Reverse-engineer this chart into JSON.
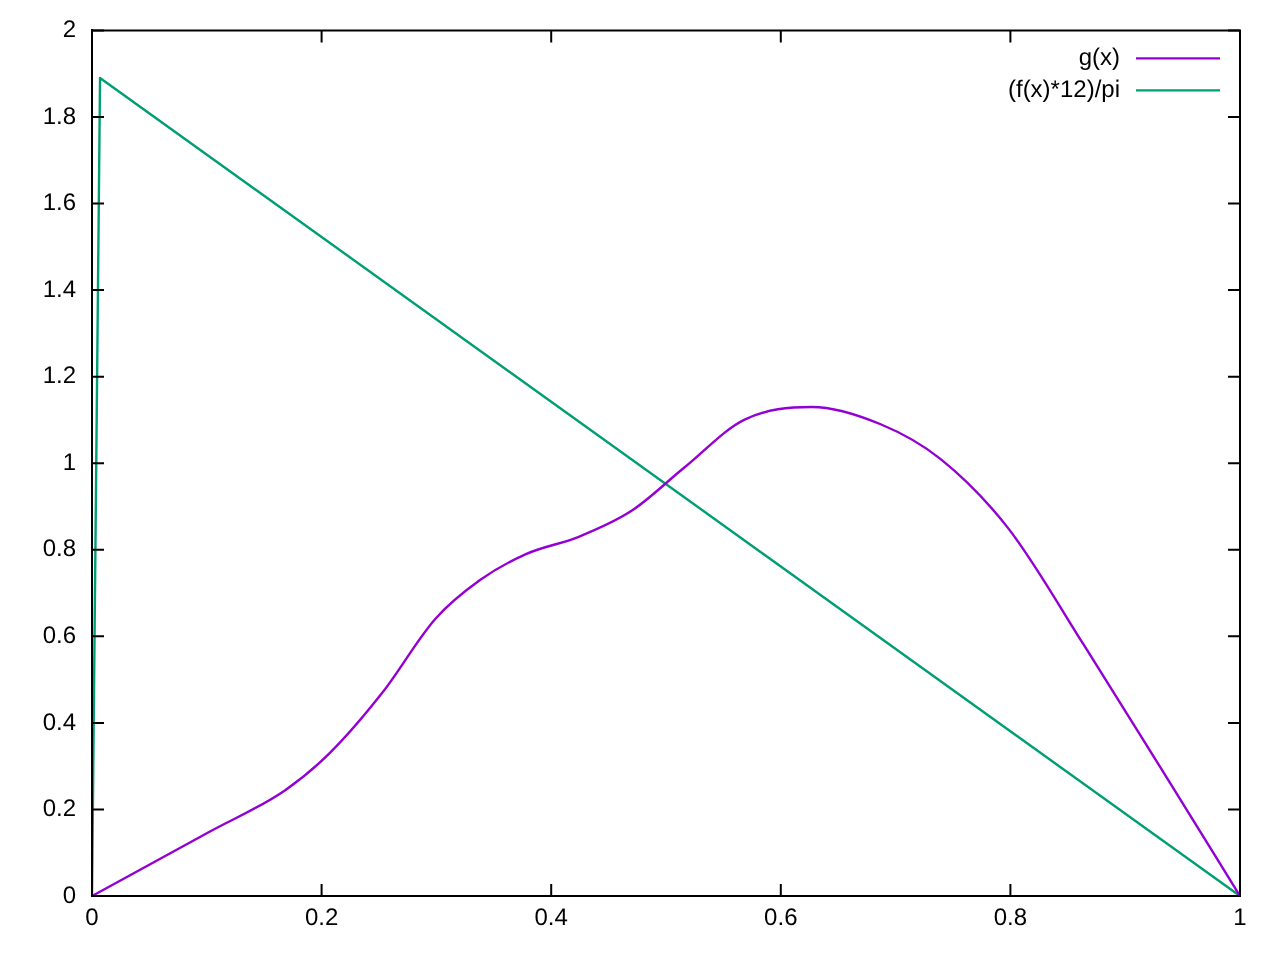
{
  "chart_data": {
    "type": "line",
    "xlim": [
      0,
      1
    ],
    "ylim": [
      0,
      2
    ],
    "xticks": [
      0,
      0.2,
      0.4,
      0.6,
      0.8,
      1
    ],
    "yticks": [
      0,
      0.2,
      0.4,
      0.6,
      0.8,
      1,
      1.2,
      1.4,
      1.6,
      1.8,
      2
    ],
    "grid": false,
    "legend": "top right",
    "marker": "none",
    "line_style": "solid",
    "series": [
      {
        "name": "g(x)",
        "color": "#9400d3",
        "x": [
          0,
          0.102,
          0.168,
          0.207,
          0.253,
          0.299,
          0.338,
          0.378,
          0.424,
          0.47,
          0.516,
          0.568,
          0.627,
          0.687,
          0.739,
          0.798,
          0.864,
          0.93,
          1
        ],
        "values": [
          0,
          0.148,
          0.244,
          0.33,
          0.47,
          0.64,
          0.73,
          0.79,
          0.83,
          0.89,
          0.99,
          1.1,
          1.13,
          1.09,
          1.01,
          0.85,
          0.58,
          0.3,
          0
        ]
      },
      {
        "name": "(f(x)*12)/pi",
        "color": "#009e73",
        "x": [
          0,
          0.007,
          1
        ],
        "values": [
          0,
          1.89,
          0
        ]
      }
    ]
  }
}
